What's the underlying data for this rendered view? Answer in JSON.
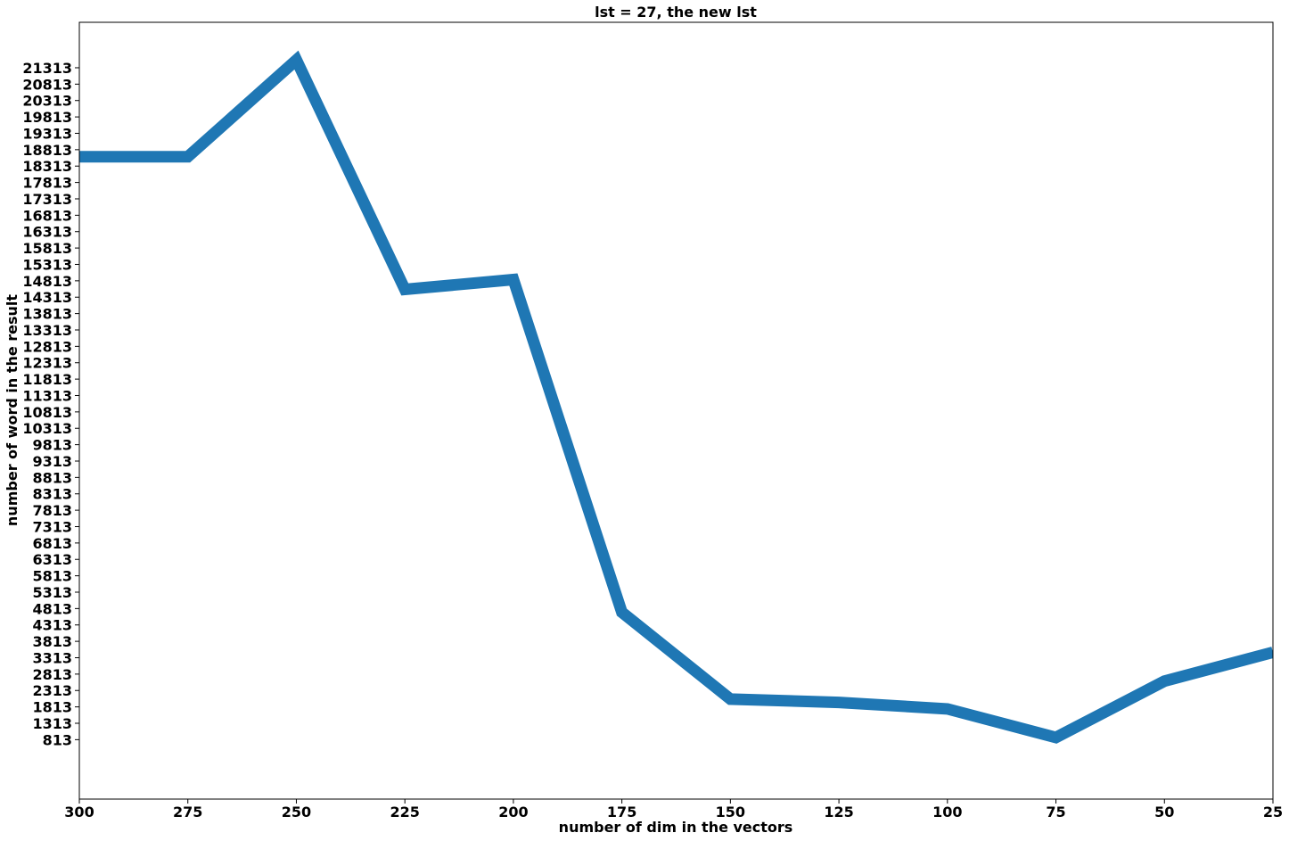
{
  "chart_data": {
    "type": "line",
    "title": "lst = 27, the new lst",
    "xlabel": "number of dim in the vectors",
    "ylabel": "number of word in the result",
    "x_inverted": true,
    "xlim": [
      300,
      25
    ],
    "ylim": [
      -1000,
      22700
    ],
    "x_ticks": [
      300,
      275,
      250,
      225,
      200,
      175,
      150,
      125,
      100,
      75,
      50,
      25
    ],
    "y_ticks": [
      813,
      1313,
      1813,
      2313,
      2813,
      3313,
      3813,
      4313,
      4813,
      5313,
      5813,
      6313,
      6813,
      7313,
      7813,
      8313,
      8813,
      9313,
      9813,
      10313,
      10813,
      11313,
      11813,
      12313,
      12813,
      13313,
      13813,
      14313,
      14813,
      15313,
      15813,
      16313,
      16813,
      17313,
      17813,
      18313,
      18813,
      19313,
      19813,
      20313,
      20813,
      21313
    ],
    "grid": false,
    "series": [
      {
        "color": "#1f77b4",
        "x": [
          300,
          275,
          250,
          225,
          200,
          175,
          150,
          125,
          100,
          75,
          50,
          25
        ],
        "y": [
          18600,
          18600,
          21550,
          14550,
          14850,
          4700,
          2050,
          1950,
          1750,
          880,
          2600,
          3480
        ]
      }
    ]
  }
}
